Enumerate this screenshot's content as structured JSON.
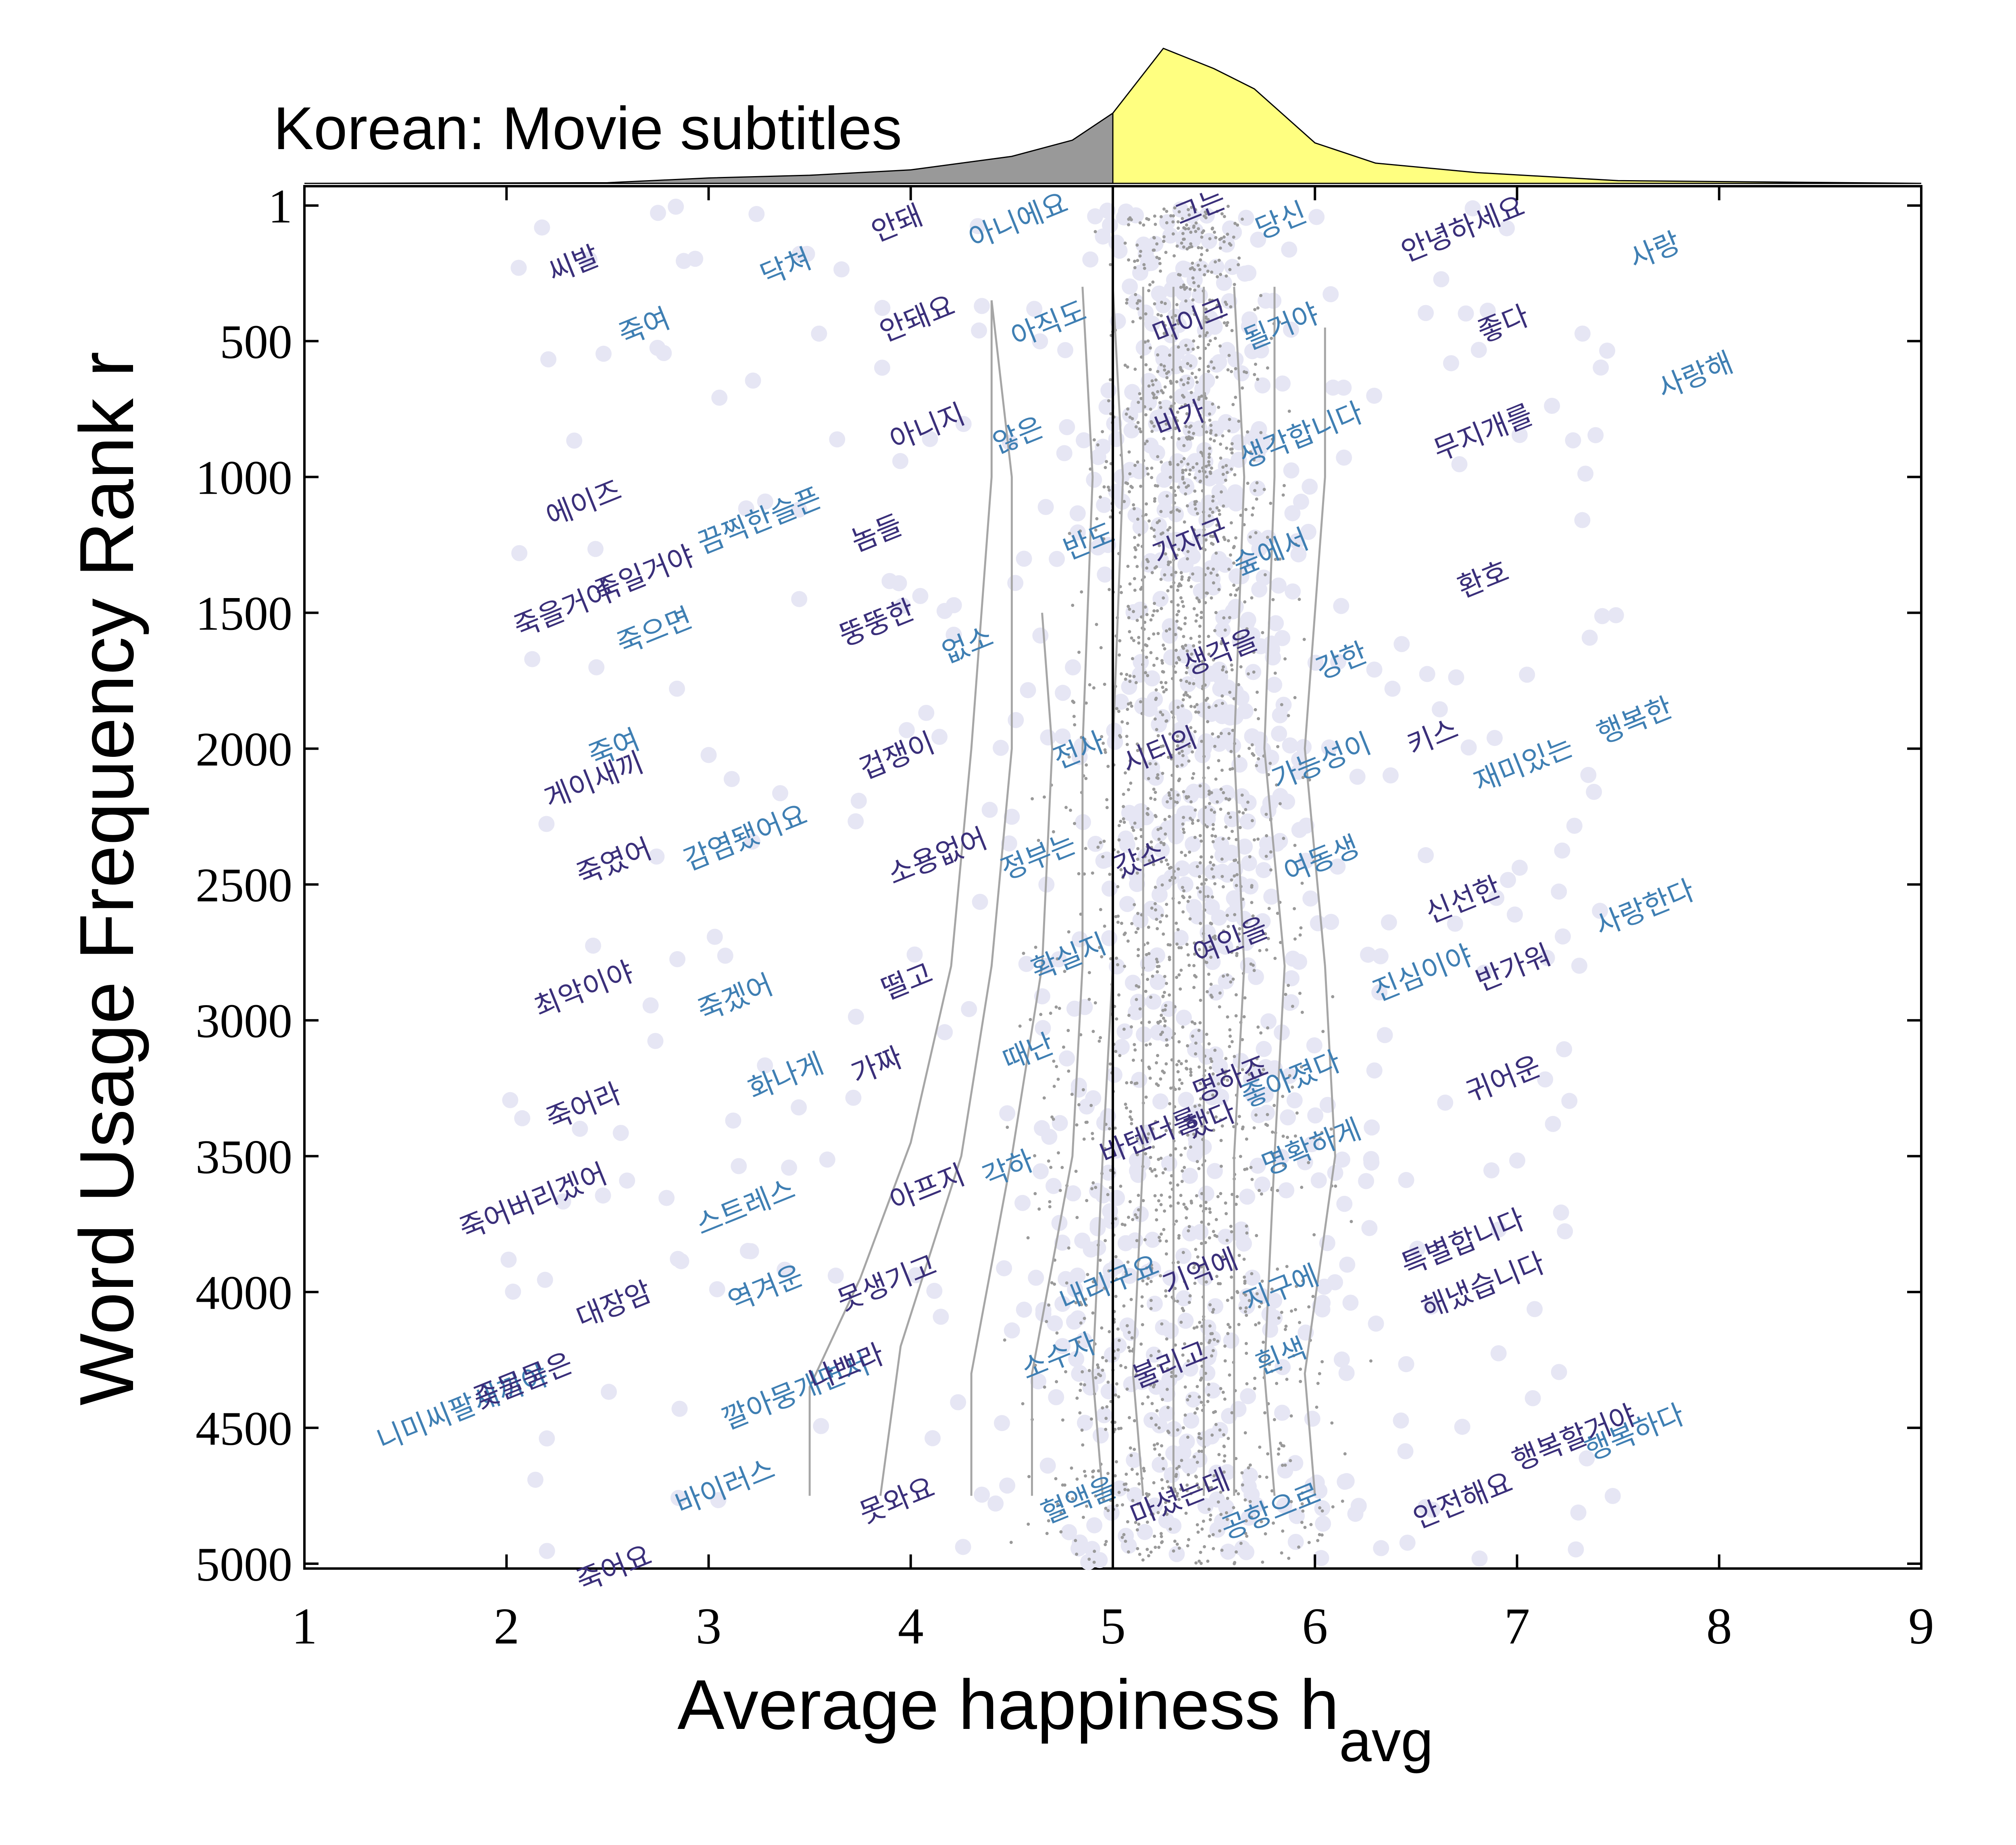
{
  "chart_data": {
    "type": "scatter",
    "title": "Korean: Movie subtitles",
    "xlabel": "Average happiness h",
    "xlabel_subscript": "avg",
    "ylabel": "Word Usage Frequency Rank r",
    "xlim": [
      1,
      9
    ],
    "ylim": [
      1,
      5000
    ],
    "y_inverted": true,
    "x_ticks": [
      "1",
      "2",
      "3",
      "4",
      "5",
      "6",
      "7",
      "8",
      "9"
    ],
    "y_ticks": [
      {
        "value": 1,
        "label": "1"
      },
      {
        "value": 500,
        "label": "500"
      },
      {
        "value": 1000,
        "label": "1000"
      },
      {
        "value": 1500,
        "label": "1500"
      },
      {
        "value": 2000,
        "label": "2000"
      },
      {
        "value": 2500,
        "label": "2500"
      },
      {
        "value": 3000,
        "label": "3000"
      },
      {
        "value": 3500,
        "label": "3500"
      },
      {
        "value": 4000,
        "label": "4000"
      },
      {
        "value": 4500,
        "label": "4500"
      },
      {
        "value": 5000,
        "label": "5000"
      }
    ],
    "colors": {
      "word_dark": "#3a2f7a",
      "word_light": "#3f7fb3",
      "marker": "#e6e6f4",
      "dot": "#999999",
      "contour": "#a6a6a6",
      "hist_below": "#999999",
      "hist_above": "#ffff80"
    },
    "histogram": {
      "x": [
        1.0,
        2.5,
        3.0,
        3.5,
        4.0,
        4.5,
        4.8,
        5.0,
        5.25,
        5.5,
        5.7,
        6.0,
        6.3,
        6.8,
        7.5,
        9.0
      ],
      "density": [
        0.0,
        0.005,
        0.04,
        0.06,
        0.1,
        0.2,
        0.32,
        0.52,
        1.0,
        0.85,
        0.7,
        0.3,
        0.15,
        0.08,
        0.02,
        0.0
      ],
      "split_at": 5.0
    },
    "contour_lines": [
      {
        "points": [
          [
            3.5,
            4750
          ],
          [
            3.5,
            4350
          ],
          [
            3.75,
            3950
          ],
          [
            4.0,
            3450
          ],
          [
            4.2,
            2800
          ],
          [
            4.3,
            2000
          ],
          [
            4.4,
            1000
          ],
          [
            4.4,
            350
          ]
        ]
      },
      {
        "points": [
          [
            3.85,
            4750
          ],
          [
            3.95,
            4200
          ],
          [
            4.25,
            3500
          ],
          [
            4.4,
            2800
          ],
          [
            4.5,
            2000
          ],
          [
            4.5,
            1000
          ],
          [
            4.4,
            350
          ]
        ]
      },
      {
        "points": [
          [
            4.3,
            4750
          ],
          [
            4.3,
            4300
          ],
          [
            4.5,
            3500
          ],
          [
            4.65,
            2800
          ],
          [
            4.7,
            2000
          ],
          [
            4.65,
            1500
          ]
        ]
      },
      {
        "points": [
          [
            4.6,
            4750
          ],
          [
            4.6,
            4300
          ],
          [
            4.8,
            3500
          ],
          [
            4.85,
            2800
          ],
          [
            4.85,
            2000
          ],
          [
            4.9,
            1000
          ],
          [
            4.85,
            300
          ]
        ]
      },
      {
        "points": [
          [
            4.95,
            4750
          ],
          [
            4.9,
            4300
          ],
          [
            4.95,
            3500
          ],
          [
            5.0,
            2800
          ],
          [
            5.0,
            2000
          ],
          [
            5.05,
            1000
          ],
          [
            5.0,
            300
          ]
        ]
      },
      {
        "points": [
          [
            5.15,
            4750
          ],
          [
            5.1,
            4300
          ],
          [
            5.15,
            3500
          ],
          [
            5.15,
            2800
          ],
          [
            5.15,
            2000
          ],
          [
            5.15,
            1000
          ],
          [
            5.15,
            300
          ]
        ]
      },
      {
        "points": [
          [
            5.3,
            4750
          ],
          [
            5.3,
            4300
          ],
          [
            5.3,
            3500
          ],
          [
            5.3,
            2800
          ],
          [
            5.3,
            2000
          ],
          [
            5.3,
            1000
          ],
          [
            5.3,
            300
          ]
        ]
      },
      {
        "points": [
          [
            5.45,
            4750
          ],
          [
            5.45,
            4300
          ],
          [
            5.45,
            3500
          ],
          [
            5.45,
            2800
          ],
          [
            5.45,
            2000
          ],
          [
            5.45,
            1000
          ],
          [
            5.45,
            300
          ]
        ]
      },
      {
        "points": [
          [
            5.6,
            4750
          ],
          [
            5.6,
            4300
          ],
          [
            5.6,
            3500
          ],
          [
            5.65,
            2800
          ],
          [
            5.6,
            2000
          ],
          [
            5.65,
            1000
          ],
          [
            5.6,
            300
          ]
        ]
      },
      {
        "points": [
          [
            5.8,
            4750
          ],
          [
            5.75,
            4300
          ],
          [
            5.8,
            3500
          ],
          [
            5.85,
            2800
          ],
          [
            5.75,
            2000
          ],
          [
            5.8,
            1000
          ],
          [
            5.8,
            300
          ]
        ]
      },
      {
        "points": [
          [
            6.0,
            4750
          ],
          [
            5.95,
            4300
          ],
          [
            6.1,
            3500
          ],
          [
            6.05,
            2800
          ],
          [
            5.95,
            2000
          ],
          [
            6.05,
            1000
          ],
          [
            6.05,
            450
          ]
        ]
      }
    ],
    "words": [
      {
        "text": "씨발",
        "h": 2.35,
        "r": 250,
        "tone": "dark"
      },
      {
        "text": "죽여",
        "h": 2.7,
        "r": 480,
        "tone": "light"
      },
      {
        "text": "닥쳐",
        "h": 3.4,
        "r": 260,
        "tone": "light"
      },
      {
        "text": "안돼",
        "h": 3.95,
        "r": 100,
        "tone": "dark"
      },
      {
        "text": "아니에요",
        "h": 4.55,
        "r": 90,
        "tone": "light"
      },
      {
        "text": "그는",
        "h": 5.45,
        "r": 40,
        "tone": "dark"
      },
      {
        "text": "당신",
        "h": 5.85,
        "r": 90,
        "tone": "light"
      },
      {
        "text": "안녕하세요",
        "h": 6.75,
        "r": 120,
        "tone": "dark"
      },
      {
        "text": "사랑",
        "h": 7.7,
        "r": 200,
        "tone": "light"
      },
      {
        "text": "안돼요",
        "h": 4.05,
        "r": 450,
        "tone": "dark"
      },
      {
        "text": "아직도",
        "h": 4.7,
        "r": 470,
        "tone": "light"
      },
      {
        "text": "마이크",
        "h": 5.4,
        "r": 460,
        "tone": "dark"
      },
      {
        "text": "될거야",
        "h": 5.85,
        "r": 480,
        "tone": "light"
      },
      {
        "text": "좋다",
        "h": 6.95,
        "r": 470,
        "tone": "dark"
      },
      {
        "text": "사랑해",
        "h": 7.9,
        "r": 660,
        "tone": "light"
      },
      {
        "text": "아니지",
        "h": 4.1,
        "r": 850,
        "tone": "dark"
      },
      {
        "text": "않은",
        "h": 4.55,
        "r": 880,
        "tone": "light"
      },
      {
        "text": "비가",
        "h": 5.35,
        "r": 820,
        "tone": "dark"
      },
      {
        "text": "생각합니다",
        "h": 5.95,
        "r": 880,
        "tone": "light"
      },
      {
        "text": "무지개를",
        "h": 6.85,
        "r": 870,
        "tone": "dark"
      },
      {
        "text": "에이즈",
        "h": 2.4,
        "r": 1130,
        "tone": "dark"
      },
      {
        "text": "끔찍한",
        "h": 3.15,
        "r": 1230,
        "tone": "light"
      },
      {
        "text": "슬픈",
        "h": 3.45,
        "r": 1140,
        "tone": "light"
      },
      {
        "text": "놈들",
        "h": 3.85,
        "r": 1240,
        "tone": "dark"
      },
      {
        "text": "반도",
        "h": 4.9,
        "r": 1270,
        "tone": "light"
      },
      {
        "text": "가자구",
        "h": 5.4,
        "r": 1270,
        "tone": "dark"
      },
      {
        "text": "숲에서",
        "h": 5.8,
        "r": 1310,
        "tone": "light"
      },
      {
        "text": "환호",
        "h": 6.85,
        "r": 1410,
        "tone": "dark"
      },
      {
        "text": "죽을거야",
        "h": 2.3,
        "r": 1520,
        "tone": "dark"
      },
      {
        "text": "죽일거야",
        "h": 2.7,
        "r": 1390,
        "tone": "dark"
      },
      {
        "text": "죽으면",
        "h": 2.75,
        "r": 1600,
        "tone": "light"
      },
      {
        "text": "뚱뚱한",
        "h": 3.85,
        "r": 1570,
        "tone": "dark"
      },
      {
        "text": "없소",
        "h": 4.3,
        "r": 1650,
        "tone": "light"
      },
      {
        "text": "생각을",
        "h": 5.55,
        "r": 1680,
        "tone": "dark"
      },
      {
        "text": "강한",
        "h": 6.15,
        "r": 1710,
        "tone": "light"
      },
      {
        "text": "게이새끼",
        "h": 2.45,
        "r": 2150,
        "tone": "dark"
      },
      {
        "text": "죽여",
        "h": 2.55,
        "r": 2030,
        "tone": "light"
      },
      {
        "text": "겁쟁이",
        "h": 3.95,
        "r": 2060,
        "tone": "dark"
      },
      {
        "text": "전사",
        "h": 4.85,
        "r": 2040,
        "tone": "light"
      },
      {
        "text": "시티의",
        "h": 5.25,
        "r": 2040,
        "tone": "dark"
      },
      {
        "text": "가능성이",
        "h": 6.05,
        "r": 2080,
        "tone": "light"
      },
      {
        "text": "키스",
        "h": 6.6,
        "r": 1990,
        "tone": "dark"
      },
      {
        "text": "재미있는",
        "h": 7.05,
        "r": 2090,
        "tone": "light"
      },
      {
        "text": "행복한",
        "h": 7.6,
        "r": 1930,
        "tone": "light"
      },
      {
        "text": "죽였어",
        "h": 2.55,
        "r": 2450,
        "tone": "dark"
      },
      {
        "text": "감염됐어요",
        "h": 3.2,
        "r": 2360,
        "tone": "light"
      },
      {
        "text": "소용없어",
        "h": 4.15,
        "r": 2430,
        "tone": "dark"
      },
      {
        "text": "정부는",
        "h": 4.65,
        "r": 2430,
        "tone": "light"
      },
      {
        "text": "갔소",
        "h": 5.15,
        "r": 2440,
        "tone": "dark"
      },
      {
        "text": "여동생",
        "h": 6.05,
        "r": 2440,
        "tone": "light"
      },
      {
        "text": "신선한",
        "h": 6.75,
        "r": 2590,
        "tone": "dark"
      },
      {
        "text": "사랑한다",
        "h": 7.65,
        "r": 2620,
        "tone": "light"
      },
      {
        "text": "최악이야",
        "h": 2.4,
        "r": 2920,
        "tone": "dark"
      },
      {
        "text": "죽겠어",
        "h": 3.15,
        "r": 2950,
        "tone": "light"
      },
      {
        "text": "떨고",
        "h": 4.0,
        "r": 2890,
        "tone": "dark"
      },
      {
        "text": "확실지",
        "h": 4.8,
        "r": 2800,
        "tone": "light"
      },
      {
        "text": "여인을",
        "h": 5.6,
        "r": 2740,
        "tone": "dark"
      },
      {
        "text": "진심이야",
        "h": 6.55,
        "r": 2860,
        "tone": "light"
      },
      {
        "text": "반가워",
        "h": 7.0,
        "r": 2840,
        "tone": "dark"
      },
      {
        "text": "죽어라",
        "h": 2.4,
        "r": 3350,
        "tone": "dark"
      },
      {
        "text": "화나게",
        "h": 3.4,
        "r": 3240,
        "tone": "light"
      },
      {
        "text": "가짜",
        "h": 3.85,
        "r": 3200,
        "tone": "dark"
      },
      {
        "text": "때난",
        "h": 4.6,
        "r": 3150,
        "tone": "light"
      },
      {
        "text": "명하죠",
        "h": 5.6,
        "r": 3250,
        "tone": "dark"
      },
      {
        "text": "좋아졌다",
        "h": 5.9,
        "r": 3250,
        "tone": "light"
      },
      {
        "text": "귀어운",
        "h": 6.95,
        "r": 3250,
        "tone": "dark"
      },
      {
        "text": "죽어버리겠어",
        "h": 2.15,
        "r": 3700,
        "tone": "dark"
      },
      {
        "text": "스트레스",
        "h": 3.2,
        "r": 3720,
        "tone": "light"
      },
      {
        "text": "아프지",
        "h": 4.1,
        "r": 3650,
        "tone": "dark"
      },
      {
        "text": "각하",
        "h": 4.5,
        "r": 3580,
        "tone": "light"
      },
      {
        "text": "바텐더를",
        "h": 5.2,
        "r": 3460,
        "tone": "dark"
      },
      {
        "text": "했다",
        "h": 5.5,
        "r": 3400,
        "tone": "dark"
      },
      {
        "text": "명확하게",
        "h": 6.0,
        "r": 3500,
        "tone": "light"
      },
      {
        "text": "대장암",
        "h": 2.55,
        "r": 4080,
        "tone": "dark"
      },
      {
        "text": "역겨운",
        "h": 3.3,
        "r": 4020,
        "tone": "light"
      },
      {
        "text": "못생기고",
        "h": 3.9,
        "r": 4000,
        "tone": "dark"
      },
      {
        "text": "내리구요",
        "h": 5.0,
        "r": 4000,
        "tone": "light"
      },
      {
        "text": "기억에",
        "h": 5.45,
        "r": 3960,
        "tone": "dark"
      },
      {
        "text": "지구에",
        "h": 5.85,
        "r": 4020,
        "tone": "light"
      },
      {
        "text": "특별합니다",
        "h": 6.75,
        "r": 3850,
        "tone": "dark"
      },
      {
        "text": "해냈습니다",
        "h": 6.85,
        "r": 4010,
        "tone": "dark"
      },
      {
        "text": "니미씨팔새끼야",
        "h": 1.8,
        "r": 4460,
        "tone": "light"
      },
      {
        "text": "좆물묻은",
        "h": 2.1,
        "r": 4360,
        "tone": "dark"
      },
      {
        "text": "깔아뭉개면서",
        "h": 3.45,
        "r": 4400,
        "tone": "light"
      },
      {
        "text": "나쁘라",
        "h": 3.7,
        "r": 4310,
        "tone": "dark"
      },
      {
        "text": "소수자",
        "h": 4.75,
        "r": 4270,
        "tone": "light"
      },
      {
        "text": "불리고",
        "h": 5.3,
        "r": 4300,
        "tone": "dark"
      },
      {
        "text": "흰색",
        "h": 5.85,
        "r": 4270,
        "tone": "light"
      },
      {
        "text": "바이러스",
        "h": 3.1,
        "r": 4750,
        "tone": "light"
      },
      {
        "text": "못와요",
        "h": 3.95,
        "r": 4800,
        "tone": "dark"
      },
      {
        "text": "혈액을",
        "h": 4.85,
        "r": 4800,
        "tone": "light"
      },
      {
        "text": "마셨는데",
        "h": 5.35,
        "r": 4790,
        "tone": "dark"
      },
      {
        "text": "공항으로",
        "h": 5.8,
        "r": 4840,
        "tone": "light"
      },
      {
        "text": "안전해요",
        "h": 6.75,
        "r": 4800,
        "tone": "dark"
      },
      {
        "text": "행복할거야",
        "h": 7.3,
        "r": 4570,
        "tone": "dark"
      },
      {
        "text": "행복하다",
        "h": 7.6,
        "r": 4550,
        "tone": "light"
      },
      {
        "text": "죽어요",
        "h": 2.55,
        "r": 5050,
        "tone": "dark"
      }
    ]
  }
}
